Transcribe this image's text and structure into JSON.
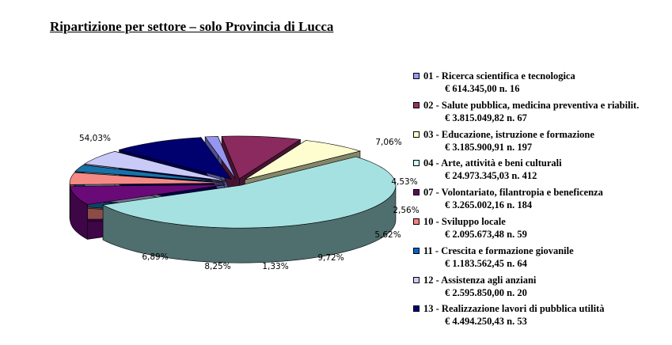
{
  "chart_data": {
    "type": "pie",
    "title": "Ripartizione per settore – solo Provincia di Lucca",
    "legend_placement": "right",
    "slices": [
      {
        "label": "54,03%",
        "value": 54.03,
        "color": "#a6e1e1",
        "side": "#4f6e6e"
      },
      {
        "label": "7,06%",
        "value": 7.06,
        "color": "#6a0a78",
        "side": "#3e0547"
      },
      {
        "label": "4,53%",
        "value": 4.53,
        "color": "#f58a84",
        "side": "#8b4c48"
      },
      {
        "label": "2,56%",
        "value": 2.56,
        "color": "#1872a8",
        "side": "#0d4264"
      },
      {
        "label": "5,62%",
        "value": 5.62,
        "color": "#cacaf8",
        "side": "#6f6f8c"
      },
      {
        "label": "9,72%",
        "value": 9.72,
        "color": "#00006e",
        "side": "#000046"
      },
      {
        "label": "1,33%",
        "value": 1.33,
        "color": "#9696f0",
        "side": "#525290"
      },
      {
        "label": "8,25%",
        "value": 8.25,
        "color": "#8a2a5e",
        "side": "#461432"
      },
      {
        "label": "6,89%",
        "value": 6.89,
        "color": "#fdfdd0",
        "side": "#86866a"
      }
    ],
    "legend": [
      {
        "name": "01 - Ricerca scientifica e tecnologica",
        "detail": "€ 614.345,00 n. 16",
        "color": "#9999ff"
      },
      {
        "name": "02 - Salute pubblica, medicina preventiva e riabilit.",
        "detail": "€ 3.815.049,82 n. 67",
        "color": "#993366"
      },
      {
        "name": "03 - Educazione, istruzione e formazione",
        "detail": "€ 3.185.900,91 n. 197",
        "color": "#ffffcc"
      },
      {
        "name": "04 - Arte, attività e beni culturali",
        "detail": "€ 24.973.345,03 n. 412",
        "color": "#ccffff"
      },
      {
        "name": "07 - Volontariato, filantropia e beneficenza",
        "detail": "€ 3.265.002,16 n. 184",
        "color": "#660066"
      },
      {
        "name": "10 - Sviluppo locale",
        "detail": "€ 2.095.673,48 n. 59",
        "color": "#ff8080"
      },
      {
        "name": "11 - Crescita e formazione giovanile",
        "detail": "€ 1.183.562,45 n. 64",
        "color": "#0066cc"
      },
      {
        "name": "12 - Assistenza agli anziani",
        "detail": "€ 2.595.850,00 n. 20",
        "color": "#ccccff"
      },
      {
        "name": "13 - Realizzazione lavori di pubblica utilità",
        "detail": "€ 4.494.250,43 n. 53",
        "color": "#000080"
      }
    ]
  }
}
